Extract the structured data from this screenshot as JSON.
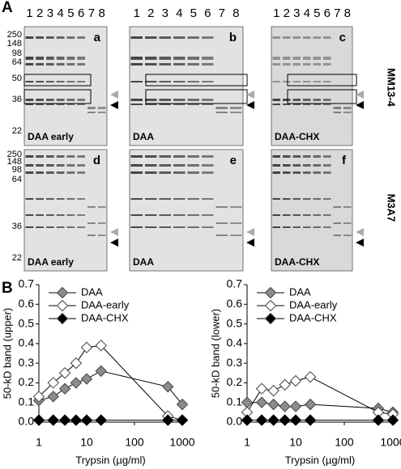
{
  "panel_a": {
    "label": "A",
    "lanes": [
      "1",
      "2",
      "3",
      "4",
      "5",
      "6",
      "7",
      "8"
    ],
    "mw_top": [
      "250",
      "148",
      "98",
      "64",
      "50",
      "36",
      "22"
    ],
    "mw_bottom": [
      "250",
      "148",
      "98",
      "64",
      "36",
      "22"
    ],
    "antibodies": [
      "MM13-4",
      "M3A7"
    ],
    "blots": [
      {
        "letter": "a",
        "label": "DAA early"
      },
      {
        "letter": "b",
        "label": "DAA"
      },
      {
        "letter": "c",
        "label": "DAA-CHX"
      },
      {
        "letter": "d",
        "label": "DAA early"
      },
      {
        "letter": "e",
        "label": "DAA"
      },
      {
        "letter": "f",
        "label": "DAA-CHX"
      }
    ]
  },
  "panel_b_label": "B",
  "chart_data": [
    {
      "type": "line",
      "ylabel": "50-kD band (upper)",
      "xlabel": "Trypsin (µg/ml)",
      "log_x": true,
      "legend": "upper left",
      "x": [
        1,
        2,
        3.5,
        6,
        10,
        20,
        500,
        1000
      ],
      "xlim": [
        1,
        1000
      ],
      "xticks": [
        1,
        10,
        100,
        1000
      ],
      "ylim": [
        0,
        0.7
      ],
      "yticks": [
        {
          "value": 0,
          "label": "0.0"
        },
        0.1,
        0.2,
        0.3,
        0.4,
        0.5,
        0.6,
        0.7
      ],
      "series": [
        {
          "name": "DAA",
          "color": "#8c8c8c",
          "values": [
            0.11,
            0.13,
            0.17,
            0.2,
            0.22,
            0.26,
            0.18,
            0.09
          ]
        },
        {
          "name": "DAA-early",
          "color": "#ffffff",
          "values": [
            0.13,
            0.2,
            0.25,
            0.3,
            0.38,
            0.39,
            0.03,
            0.01
          ]
        },
        {
          "name": "DAA-CHX",
          "color": "#000000",
          "values": [
            0.01,
            0.01,
            0.01,
            0.01,
            0.01,
            0.01,
            0.01,
            0.01
          ]
        }
      ]
    },
    {
      "type": "line",
      "ylabel": "50-kD band (lower)",
      "xlabel": "Trypsin (µg/ml)",
      "log_x": true,
      "legend": "upper left",
      "x": [
        1,
        2,
        3.5,
        6,
        10,
        20,
        500,
        1000
      ],
      "xlim": [
        1,
        1000
      ],
      "xticks": [
        1,
        10,
        100,
        1000
      ],
      "ylim": [
        0,
        0.7
      ],
      "yticks": [
        {
          "value": 0,
          "label": "0.0"
        },
        0.1,
        0.2,
        0.3,
        0.4,
        0.5,
        0.6,
        0.7
      ],
      "series": [
        {
          "name": "DAA",
          "color": "#8c8c8c",
          "values": [
            0.1,
            0.1,
            0.09,
            0.08,
            0.08,
            0.09,
            0.07,
            0.05
          ]
        },
        {
          "name": "DAA-early",
          "color": "#ffffff",
          "values": [
            0.05,
            0.17,
            0.16,
            0.19,
            0.21,
            0.23,
            0.05,
            0.04
          ]
        },
        {
          "name": "DAA-CHX",
          "color": "#000000",
          "values": [
            0.01,
            0.01,
            0.01,
            0.01,
            0.01,
            0.01,
            0.01,
            0.01
          ]
        }
      ]
    }
  ]
}
